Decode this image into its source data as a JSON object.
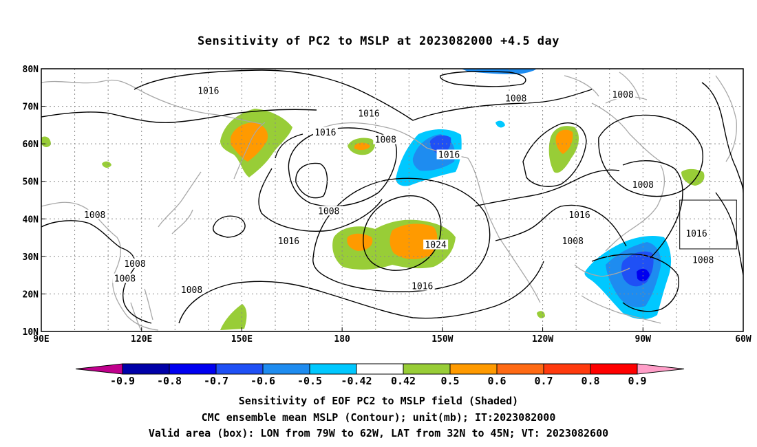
{
  "title": "Sensitivity of PC2 to MSLP at 2023082000 +4.5 day",
  "map": {
    "lon_labels": [
      "90E",
      "120E",
      "150E",
      "180",
      "150W",
      "120W",
      "90W",
      "60W"
    ],
    "lat_labels": [
      "80N",
      "70N",
      "60N",
      "50N",
      "40N",
      "30N",
      "20N",
      "10N"
    ],
    "extent": {
      "lon": [
        90,
        300
      ],
      "lat": [
        10,
        80
      ]
    },
    "grid": "dotted",
    "valid_box": {
      "lon": [
        -79,
        -62
      ],
      "lat": [
        32,
        45
      ]
    },
    "contour_labels": [
      {
        "text": "1016",
        "lon": 140,
        "lat": 74
      },
      {
        "text": "1016",
        "lon": -172,
        "lat": 68
      },
      {
        "text": "1016",
        "lon": 175,
        "lat": 63
      },
      {
        "text": "1008",
        "lon": -167,
        "lat": 61
      },
      {
        "text": "1016",
        "lon": -148,
        "lat": 57
      },
      {
        "text": "1008",
        "lon": -128,
        "lat": 72
      },
      {
        "text": "1008",
        "lon": -96,
        "lat": 73
      },
      {
        "text": "1008",
        "lon": -90,
        "lat": 49
      },
      {
        "text": "1008",
        "lon": 106,
        "lat": 41
      },
      {
        "text": "1008",
        "lon": 176,
        "lat": 42
      },
      {
        "text": "1016",
        "lon": 164,
        "lat": 34
      },
      {
        "text": "1016",
        "lon": -109,
        "lat": 41
      },
      {
        "text": "1024",
        "lon": -152,
        "lat": 33
      },
      {
        "text": "1008",
        "lon": -111,
        "lat": 34
      },
      {
        "text": "1016",
        "lon": -156,
        "lat": 22
      },
      {
        "text": "1016",
        "lon": -74,
        "lat": 36
      },
      {
        "text": "1008",
        "lon": -72,
        "lat": 29
      },
      {
        "text": "1008",
        "lon": 118,
        "lat": 28
      },
      {
        "text": "1008",
        "lon": 115,
        "lat": 24
      },
      {
        "text": "1008",
        "lon": 135,
        "lat": 21
      }
    ]
  },
  "colorbar": {
    "labels": [
      "-0.9",
      "-0.8",
      "-0.7",
      "-0.6",
      "-0.5",
      "-0.42",
      "0.42",
      "0.5",
      "0.6",
      "0.7",
      "0.8",
      "0.9"
    ],
    "colors": {
      "lt_-0.9": "#c0008c",
      "-0.9_-0.8": "#0000a8",
      "-0.8_-0.7": "#0000f0",
      "-0.7_-0.6": "#1f50f5",
      "-0.6_-0.5": "#1e8cf0",
      "-0.5_-0.42": "#00c8ff",
      "-0.42_0.42": "#ffffff",
      "0.42_0.5": "#98cd37",
      "0.5_0.6": "#ff9a00",
      "0.6_0.7": "#ff6a14",
      "0.7_0.8": "#ff3a0e",
      "0.8_0.9": "#ff0000",
      "gt_0.9": "#ff9ec8"
    }
  },
  "captions": [
    "Sensitivity of EOF PC2 to MSLP field (Shaded)",
    "CMC ensemble mean MSLP (Contour); unit(mb); IT:2023082000",
    "Valid area (box): LON from 79W to 62W, LAT from 32N to 45N; VT: 2023082600"
  ]
}
